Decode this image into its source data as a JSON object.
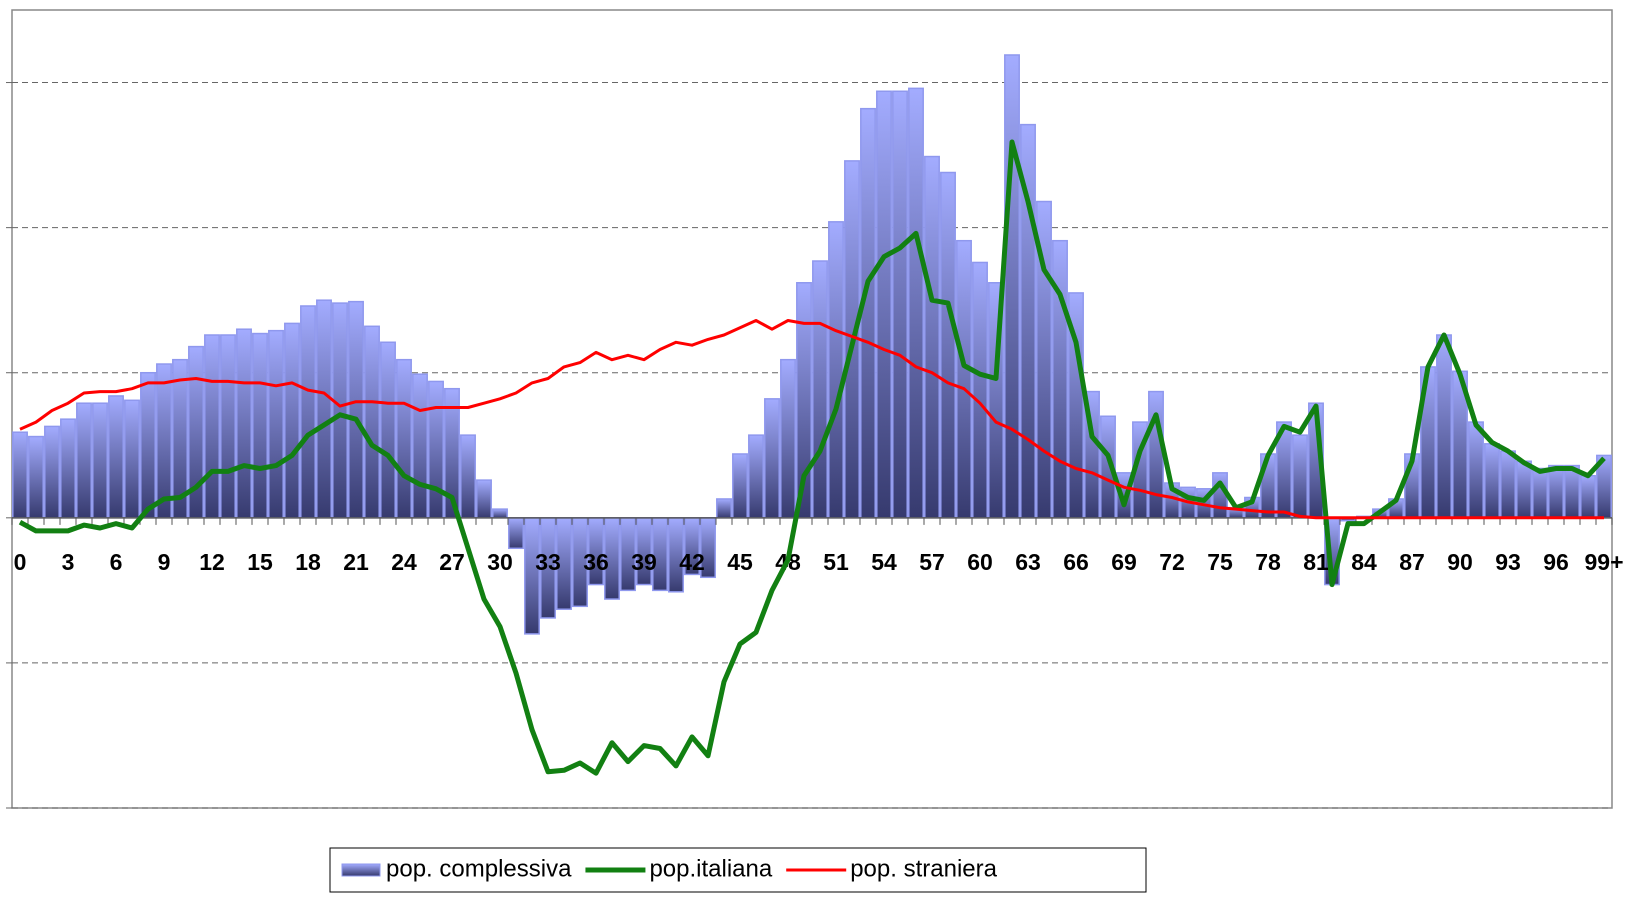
{
  "chart_data": {
    "type": "combo",
    "categories": [
      "0",
      null,
      null,
      "3",
      null,
      null,
      "6",
      null,
      null,
      "9",
      null,
      null,
      "12",
      null,
      null,
      "15",
      null,
      null,
      "18",
      null,
      null,
      "21",
      null,
      null,
      "24",
      null,
      null,
      "27",
      null,
      null,
      "30",
      null,
      null,
      "33",
      null,
      null,
      "36",
      null,
      null,
      "39",
      null,
      null,
      "42",
      null,
      null,
      "45",
      null,
      null,
      "48",
      null,
      null,
      "51",
      null,
      null,
      "54",
      null,
      null,
      "57",
      null,
      null,
      "60",
      null,
      null,
      "63",
      null,
      null,
      "66",
      null,
      null,
      "69",
      null,
      null,
      "72",
      null,
      null,
      "75",
      null,
      null,
      "78",
      null,
      null,
      "81",
      null,
      null,
      "84",
      null,
      null,
      "87",
      null,
      null,
      "90",
      null,
      null,
      "93",
      null,
      null,
      "96",
      null,
      null,
      "99+"
    ],
    "series": [
      {
        "name": "pop. complessiva",
        "type": "bar",
        "color": "#8f98ee",
        "values": [
          59,
          56,
          63,
          68,
          79,
          79,
          84,
          81,
          100,
          106,
          109,
          118,
          126,
          126,
          130,
          127,
          129,
          134,
          146,
          150,
          148,
          149,
          132,
          121,
          109,
          99,
          94,
          89,
          57,
          26,
          6,
          -21,
          -80,
          -69,
          -63,
          -61,
          -46,
          -56,
          -50,
          -46,
          -50,
          -51,
          -39,
          -41,
          13,
          44,
          57,
          82,
          109,
          162,
          177,
          204,
          246,
          282,
          294,
          294,
          296,
          249,
          238,
          191,
          176,
          162,
          319,
          271,
          218,
          191,
          155,
          87,
          70,
          31,
          66,
          87,
          24,
          21,
          20,
          31,
          7,
          14,
          44,
          66,
          57,
          79,
          -46,
          -2,
          1,
          6,
          13,
          44,
          104,
          126,
          101,
          66,
          51,
          46,
          39,
          34,
          36,
          36,
          29,
          43
        ]
      },
      {
        "name": "pop.italiana",
        "type": "line",
        "color": "#128012",
        "values": [
          -3,
          -9,
          -9,
          -9,
          -5,
          -7,
          -4,
          -7,
          6,
          13,
          14,
          21,
          32,
          32,
          36,
          34,
          36,
          43,
          57,
          64,
          71,
          68,
          50,
          43,
          29,
          23,
          20,
          14,
          -21,
          -56,
          -75,
          -107,
          -146,
          -175,
          -174,
          -169,
          -176,
          -155,
          -168,
          -157,
          -159,
          -171,
          -151,
          -164,
          -113,
          -87,
          -79,
          -50,
          -29,
          29,
          46,
          75,
          119,
          163,
          180,
          186,
          196,
          150,
          148,
          105,
          99,
          96,
          259,
          218,
          171,
          154,
          121,
          56,
          43,
          9,
          46,
          71,
          20,
          14,
          12,
          24,
          7,
          11,
          43,
          63,
          59,
          77,
          -46,
          -4,
          -4,
          4,
          12,
          39,
          104,
          126,
          99,
          64,
          52,
          46,
          38,
          32,
          34,
          34,
          29,
          41
        ]
      },
      {
        "name": "pop. straniera",
        "type": "line",
        "color": "#ff0000",
        "values": [
          61,
          66,
          74,
          79,
          86,
          87,
          87,
          89,
          93,
          93,
          95,
          96,
          94,
          94,
          93,
          93,
          91,
          93,
          88,
          86,
          77,
          80,
          80,
          79,
          79,
          74,
          76,
          76,
          76,
          79,
          82,
          86,
          93,
          96,
          104,
          107,
          114,
          109,
          112,
          109,
          116,
          121,
          119,
          123,
          126,
          131,
          136,
          130,
          136,
          134,
          134,
          129,
          125,
          121,
          116,
          112,
          104,
          100,
          93,
          89,
          79,
          66,
          61,
          54,
          46,
          39,
          34,
          31,
          26,
          21,
          19,
          16,
          14,
          11,
          9,
          7,
          6,
          5,
          4,
          4,
          1,
          0,
          0,
          0,
          0,
          0,
          0,
          0,
          0,
          0,
          0,
          0,
          0,
          0,
          0,
          0,
          0,
          0,
          0,
          0
        ]
      }
    ],
    "ylim": [
      -200,
      350
    ],
    "yticks": [
      -200,
      -100,
      0,
      100,
      200,
      300
    ],
    "grid": true
  }
}
